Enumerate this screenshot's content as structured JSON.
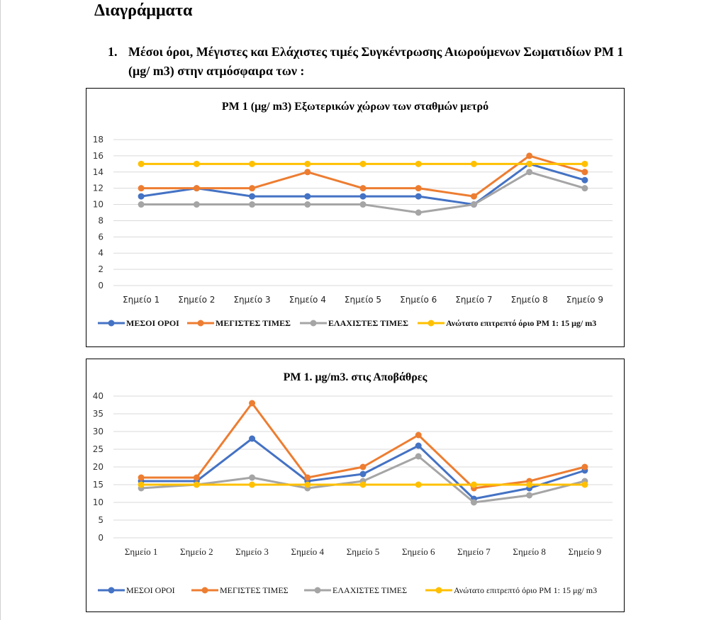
{
  "page": {
    "title": "Διαγράμματα",
    "section": {
      "number": "1.",
      "text": "Μέσοι όροι,  Μέγιστες και  Ελάχιστες τιμές Συγκέντρωσης Αιωρούμενων Σωματιδίων  PM 1 (μg/ m3) στην ατμόσφαιρα των :"
    }
  },
  "colors": {
    "mean": "#4472C4",
    "max": "#ED7D31",
    "min": "#A5A5A5",
    "limit": "#FFC000",
    "grid": "#D9D9D9"
  },
  "chart_data": [
    {
      "type": "line",
      "title": "PM 1 (μg/ m3) Εξωτερικών χώρων των σταθμών μετρό",
      "xlabel": "",
      "ylabel": "",
      "categories": [
        "Σημείο 1",
        "Σημείο 2",
        "Σημείο 3",
        "Σημείο 4",
        "Σημείο 5",
        "Σημείο 6",
        "Σημείο 7",
        "Σημείο 8",
        "Σημείο 9"
      ],
      "ylim": [
        0,
        18
      ],
      "yticks": [
        0,
        2,
        4,
        6,
        8,
        10,
        12,
        14,
        16,
        18
      ],
      "grid": true,
      "legend_position": "bottom",
      "series": [
        {
          "name": "ΜΕΣΟΙ ΟΡΟΙ",
          "color": "#4472C4",
          "values": [
            11,
            12,
            11,
            11,
            11,
            11,
            10,
            15,
            13
          ]
        },
        {
          "name": "ΜΕΓΙΣΤΕΣ ΤΙΜΕΣ",
          "color": "#ED7D31",
          "values": [
            12,
            12,
            12,
            14,
            12,
            12,
            11,
            16,
            14
          ]
        },
        {
          "name": "ΕΛΑΧΙΣΤΕΣ ΤΙΜΕΣ",
          "color": "#A5A5A5",
          "values": [
            10,
            10,
            10,
            10,
            10,
            9,
            10,
            14,
            12
          ]
        },
        {
          "name": "Ανώτατο επιτρεπτό όριο PM 1: 15 μg/ m3",
          "color": "#FFC000",
          "values": [
            15,
            15,
            15,
            15,
            15,
            15,
            15,
            15,
            15
          ]
        }
      ]
    },
    {
      "type": "line",
      "title": "PM 1. μg/m3. στις  Αποβάθρες",
      "xlabel": "",
      "ylabel": "",
      "categories": [
        "Σημείο 1",
        "Σημείο 2",
        "Σημείο 3",
        "Σημείο 4",
        "Σημείο 5",
        "Σημείο 6",
        "Σημείο 7",
        "Σημείο 8",
        "Σημείο 9"
      ],
      "ylim": [
        0,
        40
      ],
      "yticks": [
        0,
        5,
        10,
        15,
        20,
        25,
        30,
        35,
        40
      ],
      "grid": true,
      "legend_position": "bottom",
      "series": [
        {
          "name": "ΜΕΣΟΙ ΟΡΟΙ",
          "color": "#4472C4",
          "values": [
            16,
            16,
            28,
            16,
            18,
            26,
            11,
            14,
            19
          ]
        },
        {
          "name": "ΜΕΓΙΣΤΕΣ ΤΙΜΕΣ",
          "color": "#ED7D31",
          "values": [
            17,
            17,
            38,
            17,
            20,
            29,
            14,
            16,
            20
          ]
        },
        {
          "name": "ΕΛΑΧΙΣΤΕΣ ΤΙΜΕΣ",
          "color": "#A5A5A5",
          "values": [
            14,
            15,
            17,
            14,
            16,
            23,
            10,
            12,
            16
          ]
        },
        {
          "name": "Ανώτατο επιτρεπτό όριο PM 1: 15 μg/ m3",
          "color": "#FFC000",
          "values": [
            15,
            15,
            15,
            15,
            15,
            15,
            15,
            15,
            15
          ]
        }
      ]
    }
  ]
}
